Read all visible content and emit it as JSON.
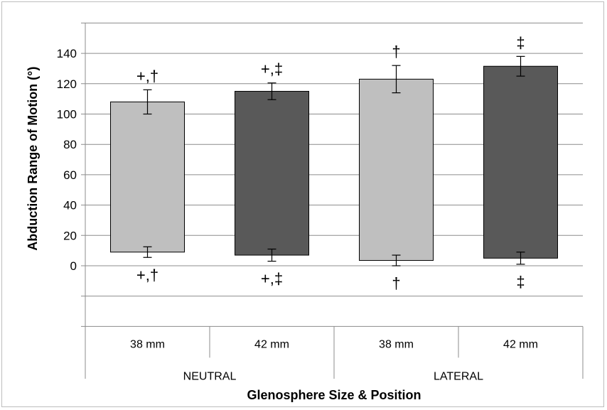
{
  "chart_data": {
    "type": "bar",
    "subtype": "floating-range-bar",
    "ylabel": "Abduction Range of Motion (°)",
    "xlabel": "Glenosphere Size & Position",
    "ylim": [
      -40,
      160
    ],
    "yticks": [
      0,
      20,
      40,
      60,
      80,
      100,
      120,
      140
    ],
    "grid": true,
    "categories": [
      "38 mm",
      "42 mm",
      "38 mm",
      "42 mm"
    ],
    "groups": [
      {
        "label": "NEUTRAL",
        "span": 2
      },
      {
        "label": "LATERAL",
        "span": 2
      }
    ],
    "bars": [
      {
        "category": "38 mm",
        "group": "NEUTRAL",
        "low": 9,
        "high": 108,
        "low_err": 3.5,
        "high_err": 8,
        "fill": "#bfbfbf",
        "top_label": "+,†",
        "bottom_label": "+,†"
      },
      {
        "category": "42 mm",
        "group": "NEUTRAL",
        "low": 7,
        "high": 115,
        "low_err": 4,
        "high_err": 5.5,
        "fill": "#595959",
        "top_label": "+,‡",
        "bottom_label": "+,‡"
      },
      {
        "category": "38 mm",
        "group": "LATERAL",
        "low": 3.5,
        "high": 123,
        "low_err": 3.5,
        "high_err": 9,
        "fill": "#bfbfbf",
        "top_label": "†",
        "bottom_label": "†"
      },
      {
        "category": "42 mm",
        "group": "LATERAL",
        "low": 5,
        "high": 131.5,
        "low_err": 4,
        "high_err": 6.5,
        "fill": "#595959",
        "top_label": "‡",
        "bottom_label": "‡"
      }
    ]
  }
}
